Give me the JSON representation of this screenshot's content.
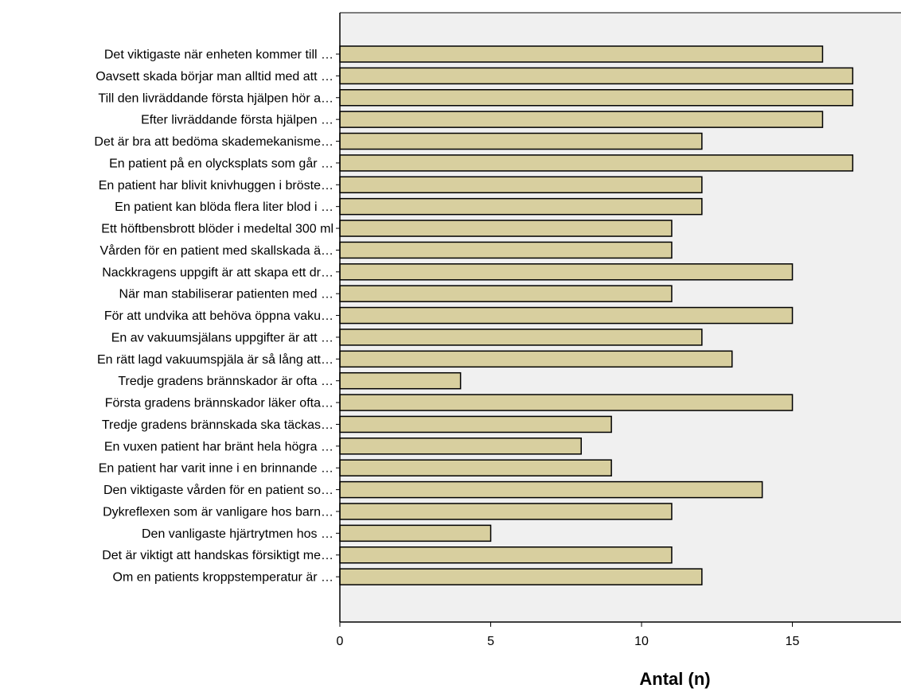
{
  "chart_data": {
    "type": "bar",
    "orientation": "horizontal",
    "categories": [
      "Det viktigaste när enheten kommer till …",
      "Oavsett skada börjar man alltid med att …",
      "Till den livräddande första hjälpen hör a…",
      "Efter livräddande första hjälpen …",
      "Det är bra att bedöma skademekanisme…",
      "En patient på en olycksplats som går …",
      "En patient har blivit knivhuggen i bröste…",
      "En patient kan blöda flera liter blod i …",
      "Ett höftbensbrott blöder i medeltal 300 ml",
      "Vården för en patient med skallskada ä…",
      "Nackkragens uppgift är att skapa ett dr…",
      "När man stabiliserar patienten med …",
      "För att undvika att behöva öppna vaku…",
      "En av vakuumsjälans uppgifter är att …",
      "En rätt lagd vakuumspjäla är så lång att…",
      "Tredje gradens brännskador är ofta …",
      "Första gradens brännskador läker ofta…",
      "Tredje gradens brännskada ska täckas…",
      "En vuxen patient har bränt hela högra …",
      "En patient har varit inne i en brinnande …",
      "Den viktigaste vården för en patient so…",
      "Dykreflexen som är vanligare hos barn…",
      "Den vanligaste hjärtrytmen hos …",
      "Det är viktigt att handskas försiktigt me…",
      "Om en patients kroppstemperatur är …"
    ],
    "values": [
      16,
      17,
      17,
      16,
      12,
      17,
      12,
      12,
      11,
      11,
      15,
      11,
      15,
      12,
      13,
      4,
      15,
      9,
      8,
      9,
      14,
      11,
      5,
      11,
      12
    ],
    "xlabel": "Antal (n)",
    "ylabel": "",
    "xlim": [
      0,
      18.6
    ],
    "xticks": [
      0,
      5,
      10,
      15
    ],
    "grid": false,
    "colors": {
      "bar_fill": "#d8cf9f",
      "bar_stroke": "#000000",
      "plot_background": "#f0f0f0"
    }
  }
}
